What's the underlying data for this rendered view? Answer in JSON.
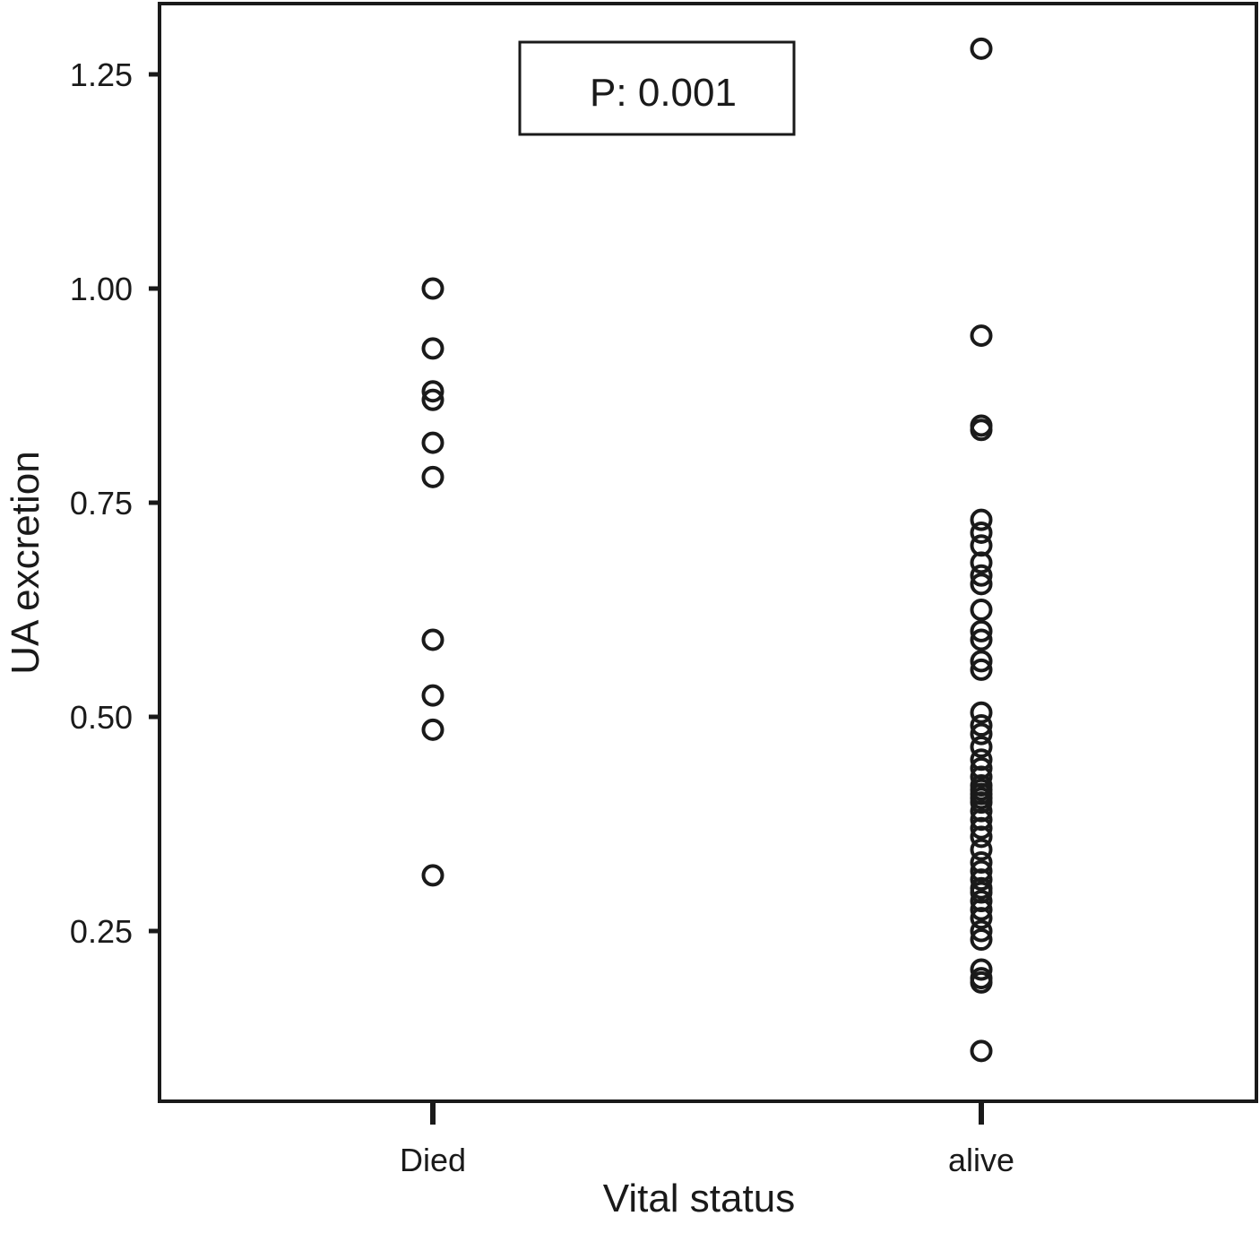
{
  "chart_data": {
    "type": "scatter",
    "title": "",
    "xlabel": "Vital status",
    "ylabel": "UA excretion",
    "categories": [
      "Died",
      "alive"
    ],
    "ylim": [
      0.07,
      1.35
    ],
    "yticks": [
      "0.25",
      "0.50",
      "0.75",
      "1.00",
      "1.25"
    ],
    "annotation": "P: 0.001",
    "grid": false,
    "series": [
      {
        "category": "Died",
        "values": [
          1.0,
          0.93,
          0.88,
          0.87,
          0.82,
          0.78,
          0.59,
          0.525,
          0.485,
          0.315
        ]
      },
      {
        "category": "alive",
        "values": [
          1.28,
          0.945,
          0.84,
          0.835,
          0.73,
          0.715,
          0.7,
          0.68,
          0.665,
          0.655,
          0.625,
          0.6,
          0.59,
          0.565,
          0.555,
          0.505,
          0.49,
          0.48,
          0.465,
          0.45,
          0.44,
          0.43,
          0.42,
          0.415,
          0.41,
          0.405,
          0.4,
          0.39,
          0.38,
          0.37,
          0.36,
          0.345,
          0.33,
          0.32,
          0.31,
          0.3,
          0.295,
          0.285,
          0.275,
          0.265,
          0.25,
          0.24,
          0.205,
          0.195,
          0.19,
          0.11
        ]
      }
    ]
  }
}
